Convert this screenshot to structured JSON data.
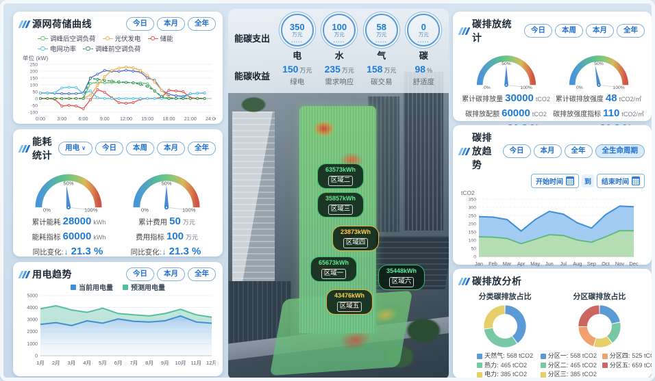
{
  "gauge_ticks": {
    "min": "0%",
    "mid": "50%",
    "max": "100%"
  },
  "colors": {
    "accent": "#1f7ad4",
    "button_border": "#7ab0e0",
    "panel_bg": "#ffffff",
    "page_bg": "#cfe0ef"
  },
  "left": {
    "source_grid": {
      "title": "源网荷储曲线",
      "buttons": [
        "今日",
        "本月",
        "全年"
      ],
      "unit_label": "单位 (kW)"
    },
    "energy_stats": {
      "title": "能耗统计",
      "dropdown_label": "用电",
      "buttons": [
        "今日",
        "本周",
        "本月",
        "全年"
      ],
      "left_gauge": {
        "needle_ratio": 0.47,
        "rows": [
          {
            "label": "累计能耗",
            "value": "28000",
            "unit": "kWh"
          },
          {
            "label": "能耗指标",
            "value": "60000",
            "unit": "kWh"
          }
        ],
        "yoy_label": "同比变化:",
        "yoy_value": "21.3 %"
      },
      "right_gauge": {
        "needle_ratio": 0.5,
        "rows": [
          {
            "label": "累计费用",
            "value": "50",
            "unit": "万元"
          },
          {
            "label": "费用指标",
            "value": "100",
            "unit": "万元"
          }
        ],
        "yoy_label": "同比变化:",
        "yoy_value": "21.3 %"
      }
    },
    "power_trend": {
      "title": "用电趋势",
      "buttons": [
        "今日",
        "本月",
        "全年"
      ]
    }
  },
  "center": {
    "expense_label": "能碳支出",
    "income_label": "能碳收益",
    "expense_items": [
      {
        "value": "350",
        "unit": "万元",
        "name": "电"
      },
      {
        "value": "100",
        "unit": "万元",
        "name": "水"
      },
      {
        "value": "58",
        "unit": "万元",
        "name": "气"
      },
      {
        "value": "0",
        "unit": "万元",
        "name": "碳"
      }
    ],
    "income_items": [
      {
        "value": "150",
        "unit": "万元",
        "name": "绿电"
      },
      {
        "value": "235",
        "unit": "万元",
        "name": "需求响应"
      },
      {
        "value": "158",
        "unit": "万元",
        "name": "碳交易"
      },
      {
        "value": "98",
        "unit": "%",
        "name": "舒适度"
      }
    ],
    "regions": [
      {
        "value": "63573kWh",
        "name": "区域二",
        "style": "green"
      },
      {
        "value": "35857kWh",
        "name": "区域三",
        "style": "green"
      },
      {
        "value": "23873kWh",
        "name": "区域四",
        "style": "yellow"
      },
      {
        "value": "65673kWh",
        "name": "区域一",
        "style": "green"
      },
      {
        "value": "35448kWh",
        "name": "区域六",
        "style": "green"
      },
      {
        "value": "43476kWh",
        "name": "区域五",
        "style": "yellow"
      }
    ]
  },
  "right": {
    "carbon_stats": {
      "title": "碳排放统计",
      "buttons": [
        "今日",
        "本周",
        "本月",
        "全年"
      ],
      "left_gauge": {
        "needle_ratio": 0.5,
        "rows": [
          {
            "label": "累计碳排放量",
            "value": "30000",
            "unit": "tCO2"
          },
          {
            "label": "碳排放配额",
            "value": "60000",
            "unit": "tCO2"
          }
        ],
        "yoy_label": "同比变化:",
        "yoy_value": "21.3 %"
      },
      "right_gauge": {
        "needle_ratio": 0.44,
        "rows": [
          {
            "label": "累计碳排放强度",
            "value": "48",
            "unit": "tCO2/㎡"
          },
          {
            "label": "碳排放强度指标",
            "value": "110",
            "unit": "tCO2/㎡"
          }
        ],
        "yoy_label": "同比变化:",
        "yoy_value": "21.3 %"
      }
    },
    "carbon_trend": {
      "title": "碳排放趋势",
      "buttons": [
        "今日",
        "本月",
        "全年",
        "全生命周期"
      ],
      "start_time_label": "开始时间",
      "to_label": "到",
      "end_time_label": "结束时间",
      "y_unit": "tCO2"
    },
    "carbon_analysis": {
      "title": "碳排放分析",
      "left_chart_title": "分类碳排放占比",
      "right_chart_title": "分区碳排放占比"
    }
  },
  "chart_data": [
    {
      "id": "source-grid-chart",
      "type": "line",
      "x_ticks": [
        "0:00",
        "3:00",
        "6:00",
        "9:00",
        "12:00",
        "15:00",
        "18:00",
        "21:00",
        "24:00"
      ],
      "ylim": [
        -100,
        250
      ],
      "yticks": [
        250,
        200,
        150,
        100,
        50,
        0,
        -50,
        -100
      ],
      "ylabel": "单位 (kW)",
      "series": [
        {
          "name": "unlabeled-navy-line",
          "color": "#5470c6",
          "values": [
            40,
            40,
            38,
            36,
            35,
            36,
            40,
            150,
            178,
            205,
            200,
            198,
            206,
            200,
            194,
            150,
            134,
            60,
            30,
            20,
            15,
            35,
            38,
            40
          ]
        },
        {
          "name": "调峰后空调负荷",
          "color": "#6cbf6c",
          "values": [
            0,
            0,
            0,
            0,
            0,
            0,
            0,
            110,
            118,
            115,
            116,
            117,
            118,
            116,
            114,
            108,
            55,
            10,
            0,
            0,
            0,
            0,
            0,
            0
          ]
        },
        {
          "name": "光伏发电",
          "color": "#f2b04e",
          "values": [
            0,
            0,
            0,
            0,
            0,
            0,
            3,
            25,
            95,
            160,
            205,
            222,
            230,
            224,
            205,
            168,
            120,
            60,
            10,
            0,
            0,
            0,
            0,
            0
          ]
        },
        {
          "name": "储能",
          "color": "#e2564f",
          "values": [
            0,
            0,
            -5,
            -55,
            -50,
            -55,
            -75,
            -10,
            65,
            45,
            5,
            -30,
            -35,
            -30,
            -5,
            0,
            0,
            10,
            60,
            55,
            50,
            5,
            0,
            0
          ]
        },
        {
          "name": "电网功率",
          "color": "#5ec1e8",
          "values": [
            40,
            40,
            42,
            78,
            82,
            80,
            36,
            55,
            5,
            0,
            0,
            0,
            0,
            0,
            0,
            0,
            0,
            0,
            0,
            0,
            5,
            35,
            38,
            40
          ]
        },
        {
          "name": "调峰前空调负荷",
          "color": "#2e8f5e",
          "dashed": true,
          "values": [
            0,
            0,
            0,
            0,
            0,
            0,
            0,
            148,
            140,
            133,
            127,
            122,
            118,
            114,
            104,
            88,
            55,
            15,
            0,
            0,
            0,
            0,
            0,
            0
          ]
        }
      ]
    },
    {
      "id": "power-trend-chart",
      "type": "area",
      "categories": [
        "1月",
        "2月",
        "3月",
        "4月",
        "5月",
        "6月",
        "7月",
        "8月",
        "9月",
        "10月",
        "11月",
        "12月"
      ],
      "ylim": [
        0,
        5000
      ],
      "yticks": [
        5000,
        4000,
        3000,
        2000,
        1000,
        0
      ],
      "series": [
        {
          "name": "当前用电量",
          "color": "#3f8fd4",
          "values": [
            2600,
            2750,
            2500,
            2900,
            2700,
            3050,
            2850,
            2800,
            2900,
            3300,
            2800,
            2700
          ]
        },
        {
          "name": "预测用电量",
          "color": "#52bfa0",
          "values": [
            3900,
            4150,
            3800,
            3600,
            3950,
            3500,
            3400,
            3300,
            3500,
            3850,
            3400,
            3200
          ]
        }
      ]
    },
    {
      "id": "carbon-trend-chart",
      "type": "area",
      "categories": [
        "Jan",
        "Feb",
        "Mar",
        "Apr",
        "May",
        "Jun",
        "Jul",
        "Aug",
        "Sep",
        "Oct",
        "Nov",
        "Dec"
      ],
      "ylim": [
        0,
        350
      ],
      "yticks": [
        350,
        300,
        250,
        200,
        150,
        100,
        50,
        0
      ],
      "ylabel": "tCO2",
      "series": [
        {
          "name": "carbon_emission",
          "color": "#3f8fd4",
          "values": [
            243,
            240,
            225,
            155,
            225,
            275,
            258,
            205,
            173,
            255,
            307,
            303
          ]
        },
        {
          "name": "emission_forecast",
          "color": "#5cb878",
          "values": [
            120,
            118,
            110,
            78,
            105,
            133,
            128,
            100,
            87,
            120,
            157,
            157
          ]
        }
      ]
    },
    {
      "id": "class-donut",
      "type": "pie",
      "title": "分类碳排放占比",
      "items": [
        {
          "label": "天然气",
          "value": 568,
          "unit": "tCO2",
          "color": "#5b9bd5"
        },
        {
          "label": "热力",
          "value": 465,
          "unit": "tCO2",
          "color": "#79c8a5"
        },
        {
          "label": "电力",
          "value": 385,
          "unit": "tCO2",
          "color": "#e6cf6a"
        }
      ]
    },
    {
      "id": "zone-donut",
      "type": "pie",
      "title": "分区碳排放占比",
      "items": [
        {
          "label": "分区一",
          "value": 568,
          "unit": "tCO2",
          "color": "#5b9bd5"
        },
        {
          "label": "分区二",
          "value": 465,
          "unit": "tCO2",
          "color": "#79c8a5"
        },
        {
          "label": "分区三",
          "value": 385,
          "unit": "tCO2",
          "color": "#e6cf6a"
        },
        {
          "label": "分区四",
          "value": 525,
          "unit": "tCO2",
          "color": "#f0a16e"
        },
        {
          "label": "分区五",
          "value": 659,
          "unit": "tCO2",
          "color": "#cd6660"
        }
      ]
    }
  ]
}
